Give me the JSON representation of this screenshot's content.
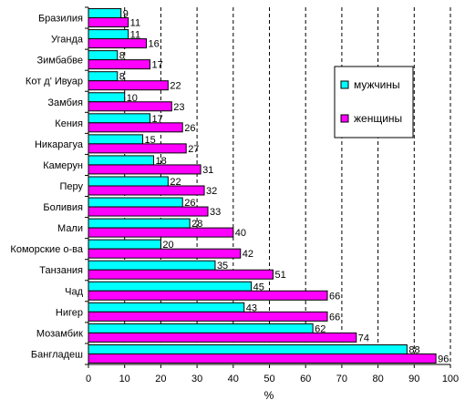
{
  "chart_data": {
    "type": "bar",
    "orientation": "horizontal",
    "categories": [
      "Бразилия",
      "Уганда",
      "Зимбабве",
      "Кот д' Ивуар",
      "Замбия",
      "Кения",
      "Никарагуа",
      "Камерун",
      "Перу",
      "Боливия",
      "Мали",
      "Коморские о-ва",
      "Танзания",
      "Чад",
      "Нигер",
      "Мозамбик",
      "Бангладеш"
    ],
    "series": [
      {
        "name": "мужчины",
        "color": "#00ffff",
        "values": [
          9,
          11,
          8,
          8,
          10,
          17,
          15,
          18,
          22,
          26,
          28,
          20,
          35,
          45,
          43,
          62,
          88
        ]
      },
      {
        "name": "женщины",
        "color": "#ff00ff",
        "values": [
          11,
          16,
          17,
          22,
          23,
          26,
          27,
          31,
          32,
          33,
          40,
          42,
          51,
          66,
          66,
          74,
          96
        ]
      }
    ],
    "xlabel": "%",
    "xlim": [
      0,
      100
    ],
    "xticks": [
      0,
      10,
      20,
      30,
      40,
      50,
      60,
      70,
      80,
      90,
      100
    ],
    "grid": "vertical dashed",
    "legend_position": "right"
  }
}
